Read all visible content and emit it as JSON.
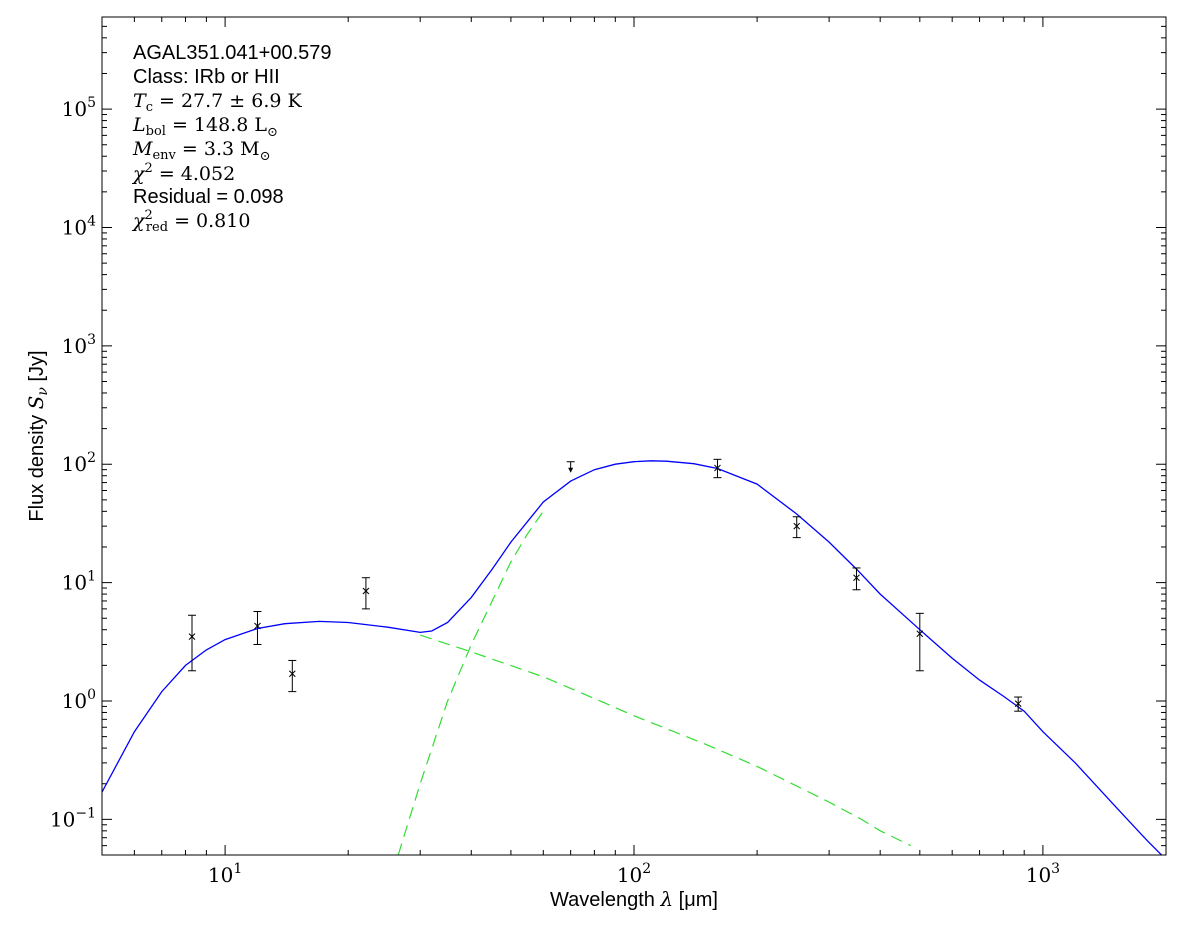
{
  "chart_data": {
    "type": "line",
    "xscale": "log",
    "yscale": "log",
    "xlim": [
      5,
      2000
    ],
    "ylim": [
      0.05,
      600000
    ],
    "xlabel_text": "Wavelength ",
    "xlabel_symbol": "λ",
    "xlabel_unit": " [μm]",
    "ylabel_text": "Flux density ",
    "ylabel_symbol": "S",
    "ylabel_sub": "ν",
    "ylabel_unit": " [Jy]",
    "xticks": [
      {
        "value": 10,
        "base": "10",
        "exp": "1"
      },
      {
        "value": 100,
        "base": "10",
        "exp": "2"
      },
      {
        "value": 1000,
        "base": "10",
        "exp": "3"
      }
    ],
    "yticks": [
      {
        "value": 0.1,
        "base": "10",
        "exp": "−1"
      },
      {
        "value": 1,
        "base": "10",
        "exp": "0"
      },
      {
        "value": 10,
        "base": "10",
        "exp": "1"
      },
      {
        "value": 100,
        "base": "10",
        "exp": "2"
      },
      {
        "value": 1000,
        "base": "10",
        "exp": "3"
      },
      {
        "value": 10000,
        "base": "10",
        "exp": "4"
      },
      {
        "value": 100000,
        "base": "10",
        "exp": "5"
      }
    ],
    "annotations": {
      "source": "AGAL351.041+00.579",
      "class": "Class: IRb or HII",
      "tc_sym": "T",
      "tc_sub": "c",
      "tc_val": " = 27.7 ± 6.9 K",
      "lbol_sym": "L",
      "lbol_sub": "bol",
      "lbol_val": " = 148.8 L",
      "lbol_unit_sub": "⊙",
      "menv_sym": "M",
      "menv_sub": "env",
      "menv_val": " = 3.3 M",
      "menv_unit_sub": "⊙",
      "chi2_sym": "χ",
      "chi2_sup": "2",
      "chi2_val": " = 4.052",
      "residual": "Residual = 0.098",
      "chi2red_sym": "χ",
      "chi2red_sup": "2",
      "chi2red_sub": "red",
      "chi2red_val": " = 0.810"
    },
    "series": [
      {
        "kind": "data",
        "marker": "x",
        "color": "#000000",
        "points": [
          {
            "x": 8.3,
            "y": 3.5,
            "ylo": 1.8,
            "yhi": 5.3
          },
          {
            "x": 12.0,
            "y": 4.3,
            "ylo": 3.0,
            "yhi": 5.7
          },
          {
            "x": 14.6,
            "y": 1.7,
            "ylo": 1.2,
            "yhi": 2.2
          },
          {
            "x": 22.1,
            "y": 8.5,
            "ylo": 6.0,
            "yhi": 11.0
          },
          {
            "x": 160,
            "y": 93,
            "ylo": 77,
            "yhi": 110
          },
          {
            "x": 250,
            "y": 30,
            "ylo": 24,
            "yhi": 36
          },
          {
            "x": 350,
            "y": 11,
            "ylo": 8.7,
            "yhi": 13.3
          },
          {
            "x": 500,
            "y": 3.7,
            "ylo": 1.8,
            "yhi": 5.5
          },
          {
            "x": 870,
            "y": 0.95,
            "ylo": 0.82,
            "yhi": 1.08
          }
        ]
      },
      {
        "kind": "upper_limit",
        "marker": "arrow-down",
        "color": "#000000",
        "points": [
          {
            "x": 70,
            "y": 105
          }
        ]
      },
      {
        "kind": "total_fit",
        "style": "solid",
        "color": "#0000ff",
        "points": [
          [
            5,
            0.17
          ],
          [
            6,
            0.55
          ],
          [
            7,
            1.2
          ],
          [
            8,
            2.0
          ],
          [
            9,
            2.7
          ],
          [
            10,
            3.3
          ],
          [
            12,
            4.1
          ],
          [
            14,
            4.5
          ],
          [
            17,
            4.7
          ],
          [
            20,
            4.6
          ],
          [
            25,
            4.2
          ],
          [
            30,
            3.8
          ],
          [
            32,
            3.9
          ],
          [
            35,
            4.6
          ],
          [
            40,
            7.5
          ],
          [
            45,
            13
          ],
          [
            50,
            22
          ],
          [
            55,
            33
          ],
          [
            60,
            48
          ],
          [
            70,
            72
          ],
          [
            80,
            90
          ],
          [
            90,
            100
          ],
          [
            100,
            105
          ],
          [
            110,
            107
          ],
          [
            120,
            106
          ],
          [
            140,
            101
          ],
          [
            160,
            92
          ],
          [
            200,
            68
          ],
          [
            250,
            38
          ],
          [
            300,
            22
          ],
          [
            350,
            13
          ],
          [
            400,
            8.0
          ],
          [
            500,
            4.0
          ],
          [
            600,
            2.3
          ],
          [
            700,
            1.5
          ],
          [
            800,
            1.1
          ],
          [
            900,
            0.82
          ],
          [
            1000,
            0.55
          ],
          [
            1200,
            0.3
          ],
          [
            1500,
            0.13
          ],
          [
            1800,
            0.066
          ],
          [
            1950,
            0.05
          ]
        ]
      },
      {
        "kind": "warm_component",
        "style": "dashed",
        "color": "#33dd33",
        "points": [
          [
            30,
            3.6
          ],
          [
            40,
            2.6
          ],
          [
            60,
            1.6
          ],
          [
            80,
            1.05
          ],
          [
            100,
            0.75
          ],
          [
            150,
            0.43
          ],
          [
            200,
            0.28
          ],
          [
            300,
            0.14
          ],
          [
            360,
            0.1
          ],
          [
            400,
            0.08
          ],
          [
            475,
            0.06
          ]
        ]
      },
      {
        "kind": "cold_component",
        "style": "dashed",
        "color": "#33dd33",
        "points": [
          [
            26.5,
            0.05
          ],
          [
            30,
            0.2
          ],
          [
            35,
            1.0
          ],
          [
            40,
            3.0
          ],
          [
            45,
            7.0
          ],
          [
            50,
            15
          ],
          [
            55,
            26
          ],
          [
            60,
            40
          ]
        ]
      }
    ]
  }
}
